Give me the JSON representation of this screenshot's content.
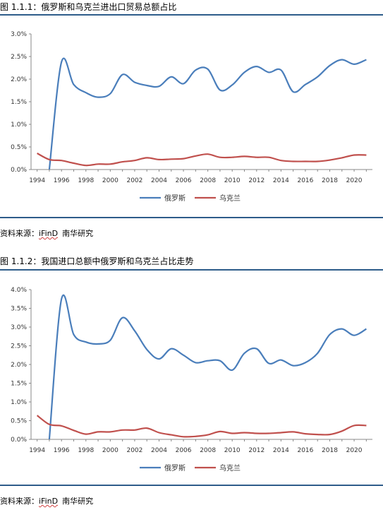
{
  "figures": [
    {
      "title": "图 1.1.1：俄罗斯和乌克兰进出口贸易总额占比",
      "source_label": "资料来源：",
      "source_ifind": "iFinD",
      "source_org": "南华研究"
    },
    {
      "title": "图 1.1.2：我国进口总额中俄罗斯和乌克兰占比走势",
      "source_label": "资料来源：",
      "source_ifind": "iFinD",
      "source_org": "南华研究"
    }
  ],
  "chart_data": [
    {
      "type": "line",
      "ylim": [
        0,
        3.0
      ],
      "xlim": [
        1993.5,
        2021.5
      ],
      "yticks": [
        "3.0%",
        "2.5%",
        "2.0%",
        "1.5%",
        "1.0%",
        "0.5%",
        "0.0%"
      ],
      "ytick_values": [
        3.0,
        2.5,
        2.0,
        1.5,
        1.0,
        0.5,
        0.0
      ],
      "xticks": [
        "1994",
        "1996",
        "1998",
        "2000",
        "2002",
        "2004",
        "2006",
        "2008",
        "2010",
        "2012",
        "2014",
        "2016",
        "2018",
        "2020"
      ],
      "series": [
        {
          "name": "俄罗斯",
          "color": "#4A7EBB",
          "x": [
            1995,
            1996,
            1997,
            1998,
            1999,
            2000,
            2001,
            2002,
            2003,
            2004,
            2005,
            2006,
            2007,
            2008,
            2009,
            2010,
            2011,
            2012,
            2013,
            2014,
            2015,
            2016,
            2017,
            2018,
            2019,
            2020,
            2021
          ],
          "values": [
            0.0,
            2.38,
            1.88,
            1.7,
            1.6,
            1.68,
            2.1,
            1.93,
            1.86,
            1.84,
            2.05,
            1.9,
            2.2,
            2.22,
            1.76,
            1.87,
            2.15,
            2.28,
            2.15,
            2.2,
            1.72,
            1.88,
            2.05,
            2.3,
            2.43,
            2.33,
            2.43
          ]
        },
        {
          "name": "乌克兰",
          "color": "#C0504D",
          "x": [
            1994,
            1995,
            1996,
            1997,
            1998,
            1999,
            2000,
            2001,
            2002,
            2003,
            2004,
            2005,
            2006,
            2007,
            2008,
            2009,
            2010,
            2011,
            2012,
            2013,
            2014,
            2015,
            2016,
            2017,
            2018,
            2019,
            2020,
            2021
          ],
          "values": [
            0.36,
            0.22,
            0.2,
            0.14,
            0.09,
            0.12,
            0.12,
            0.17,
            0.2,
            0.26,
            0.22,
            0.23,
            0.24,
            0.3,
            0.34,
            0.27,
            0.27,
            0.29,
            0.27,
            0.27,
            0.2,
            0.18,
            0.18,
            0.18,
            0.21,
            0.26,
            0.32,
            0.32
          ]
        }
      ]
    },
    {
      "type": "line",
      "ylim": [
        0,
        4.0
      ],
      "xlim": [
        1993.5,
        2021.5
      ],
      "yticks": [
        "4.0%",
        "3.5%",
        "3.0%",
        "2.5%",
        "2.0%",
        "1.5%",
        "1.0%",
        "0.5%",
        "0.0%"
      ],
      "ytick_values": [
        4.0,
        3.5,
        3.0,
        2.5,
        2.0,
        1.5,
        1.0,
        0.5,
        0.0
      ],
      "xticks": [
        "1994",
        "1996",
        "1998",
        "2000",
        "2002",
        "2004",
        "2006",
        "2008",
        "2010",
        "2012",
        "2014",
        "2016",
        "2018",
        "2020"
      ],
      "series": [
        {
          "name": "俄罗斯",
          "color": "#4A7EBB",
          "x": [
            1995,
            1996,
            1997,
            1998,
            1999,
            2000,
            2001,
            2002,
            2003,
            2004,
            2005,
            2006,
            2007,
            2008,
            2009,
            2010,
            2011,
            2012,
            2013,
            2014,
            2015,
            2016,
            2017,
            2018,
            2019,
            2020,
            2021
          ],
          "values": [
            0.0,
            3.75,
            2.8,
            2.6,
            2.55,
            2.65,
            3.25,
            2.9,
            2.4,
            2.15,
            2.42,
            2.25,
            2.05,
            2.1,
            2.1,
            1.85,
            2.3,
            2.42,
            2.03,
            2.12,
            1.97,
            2.05,
            2.3,
            2.8,
            2.95,
            2.78,
            2.95
          ]
        },
        {
          "name": "乌克兰",
          "color": "#C0504D",
          "x": [
            1994,
            1995,
            1996,
            1997,
            1998,
            1999,
            2000,
            2001,
            2002,
            2003,
            2004,
            2005,
            2006,
            2007,
            2008,
            2009,
            2010,
            2011,
            2012,
            2013,
            2014,
            2015,
            2016,
            2017,
            2018,
            2019,
            2020,
            2021
          ],
          "values": [
            0.64,
            0.4,
            0.36,
            0.24,
            0.14,
            0.2,
            0.2,
            0.25,
            0.25,
            0.3,
            0.18,
            0.12,
            0.07,
            0.08,
            0.12,
            0.21,
            0.16,
            0.18,
            0.16,
            0.16,
            0.18,
            0.2,
            0.15,
            0.13,
            0.13,
            0.22,
            0.37,
            0.37
          ]
        }
      ]
    }
  ]
}
